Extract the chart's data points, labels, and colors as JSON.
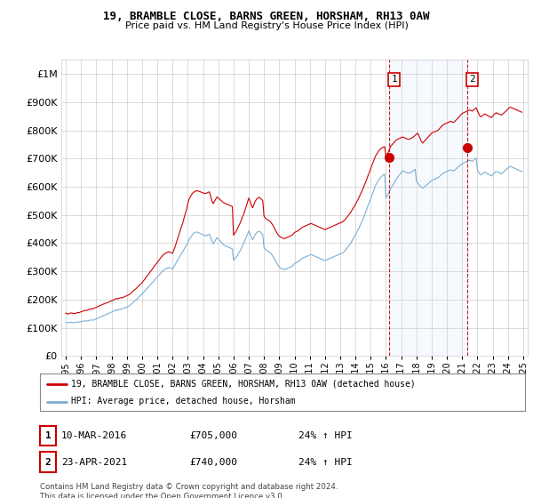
{
  "title": "19, BRAMBLE CLOSE, BARNS GREEN, HORSHAM, RH13 0AW",
  "subtitle": "Price paid vs. HM Land Registry's House Price Index (HPI)",
  "legend_line1": "19, BRAMBLE CLOSE, BARNS GREEN, HORSHAM, RH13 0AW (detached house)",
  "legend_line2": "HPI: Average price, detached house, Horsham",
  "annotation1_date": "10-MAR-2016",
  "annotation1_price": "£705,000",
  "annotation1_hpi": "24% ↑ HPI",
  "annotation2_date": "23-APR-2021",
  "annotation2_price": "£740,000",
  "annotation2_hpi": "24% ↑ HPI",
  "footer": "Contains HM Land Registry data © Crown copyright and database right 2024.\nThis data is licensed under the Open Government Licence v3.0.",
  "ylim": [
    0,
    1050000
  ],
  "ytick_vals": [
    0,
    100000,
    200000,
    300000,
    400000,
    500000,
    600000,
    700000,
    800000,
    900000,
    1000000
  ],
  "ytick_labels": [
    "£0",
    "£100K",
    "£200K",
    "£300K",
    "£400K",
    "£500K",
    "£600K",
    "£700K",
    "£800K",
    "£900K",
    "£1M"
  ],
  "red_color": "#cc0000",
  "blue_color": "#7aaed6",
  "shade_color": "#ddeeff",
  "vline_color": "#cc0000",
  "grid_color": "#cccccc",
  "bg_color": "#ffffff",
  "vline1_x": 2016.19,
  "vline2_x": 2021.31,
  "dot1_x": 2016.19,
  "dot1_y": 705000,
  "dot2_x": 2021.31,
  "dot2_y": 740000,
  "xmin": 1994.7,
  "xmax": 2025.3,
  "red_x": [
    1995.0,
    1995.08,
    1995.17,
    1995.25,
    1995.33,
    1995.42,
    1995.5,
    1995.58,
    1995.67,
    1995.75,
    1995.83,
    1995.92,
    1996.0,
    1996.08,
    1996.17,
    1996.25,
    1996.33,
    1996.42,
    1996.5,
    1996.58,
    1996.67,
    1996.75,
    1996.83,
    1996.92,
    1997.0,
    1997.08,
    1997.17,
    1997.25,
    1997.33,
    1997.42,
    1997.5,
    1997.58,
    1997.67,
    1997.75,
    1997.83,
    1997.92,
    1998.0,
    1998.08,
    1998.17,
    1998.25,
    1998.33,
    1998.42,
    1998.5,
    1998.58,
    1998.67,
    1998.75,
    1998.83,
    1998.92,
    1999.0,
    1999.08,
    1999.17,
    1999.25,
    1999.33,
    1999.42,
    1999.5,
    1999.58,
    1999.67,
    1999.75,
    1999.83,
    1999.92,
    2000.0,
    2000.08,
    2000.17,
    2000.25,
    2000.33,
    2000.42,
    2000.5,
    2000.58,
    2000.67,
    2000.75,
    2000.83,
    2000.92,
    2001.0,
    2001.08,
    2001.17,
    2001.25,
    2001.33,
    2001.42,
    2001.5,
    2001.58,
    2001.67,
    2001.75,
    2001.83,
    2001.92,
    2002.0,
    2002.08,
    2002.17,
    2002.25,
    2002.33,
    2002.42,
    2002.5,
    2002.58,
    2002.67,
    2002.75,
    2002.83,
    2002.92,
    2003.0,
    2003.08,
    2003.17,
    2003.25,
    2003.33,
    2003.42,
    2003.5,
    2003.58,
    2003.67,
    2003.75,
    2003.83,
    2003.92,
    2004.0,
    2004.08,
    2004.17,
    2004.25,
    2004.33,
    2004.42,
    2004.5,
    2004.58,
    2004.67,
    2004.75,
    2004.83,
    2004.92,
    2005.0,
    2005.08,
    2005.17,
    2005.25,
    2005.33,
    2005.42,
    2005.5,
    2005.58,
    2005.67,
    2005.75,
    2005.83,
    2005.92,
    2006.0,
    2006.08,
    2006.17,
    2006.25,
    2006.33,
    2006.42,
    2006.5,
    2006.58,
    2006.67,
    2006.75,
    2006.83,
    2006.92,
    2007.0,
    2007.08,
    2007.17,
    2007.25,
    2007.33,
    2007.42,
    2007.5,
    2007.58,
    2007.67,
    2007.75,
    2007.83,
    2007.92,
    2008.0,
    2008.08,
    2008.17,
    2008.25,
    2008.33,
    2008.42,
    2008.5,
    2008.58,
    2008.67,
    2008.75,
    2008.83,
    2008.92,
    2009.0,
    2009.08,
    2009.17,
    2009.25,
    2009.33,
    2009.42,
    2009.5,
    2009.58,
    2009.67,
    2009.75,
    2009.83,
    2009.92,
    2010.0,
    2010.08,
    2010.17,
    2010.25,
    2010.33,
    2010.42,
    2010.5,
    2010.58,
    2010.67,
    2010.75,
    2010.83,
    2010.92,
    2011.0,
    2011.08,
    2011.17,
    2011.25,
    2011.33,
    2011.42,
    2011.5,
    2011.58,
    2011.67,
    2011.75,
    2011.83,
    2011.92,
    2012.0,
    2012.08,
    2012.17,
    2012.25,
    2012.33,
    2012.42,
    2012.5,
    2012.58,
    2012.67,
    2012.75,
    2012.83,
    2012.92,
    2013.0,
    2013.08,
    2013.17,
    2013.25,
    2013.33,
    2013.42,
    2013.5,
    2013.58,
    2013.67,
    2013.75,
    2013.83,
    2013.92,
    2014.0,
    2014.08,
    2014.17,
    2014.25,
    2014.33,
    2014.42,
    2014.5,
    2014.58,
    2014.67,
    2014.75,
    2014.83,
    2014.92,
    2015.0,
    2015.08,
    2015.17,
    2015.25,
    2015.33,
    2015.42,
    2015.5,
    2015.58,
    2015.67,
    2015.75,
    2015.83,
    2015.92,
    2016.0,
    2016.08,
    2016.17,
    2016.25,
    2016.33,
    2016.42,
    2016.5,
    2016.58,
    2016.67,
    2016.75,
    2016.83,
    2016.92,
    2017.0,
    2017.08,
    2017.17,
    2017.25,
    2017.33,
    2017.42,
    2017.5,
    2017.58,
    2017.67,
    2017.75,
    2017.83,
    2017.92,
    2018.0,
    2018.08,
    2018.17,
    2018.25,
    2018.33,
    2018.42,
    2018.5,
    2018.58,
    2018.67,
    2018.75,
    2018.83,
    2018.92,
    2019.0,
    2019.08,
    2019.17,
    2019.25,
    2019.33,
    2019.42,
    2019.5,
    2019.58,
    2019.67,
    2019.75,
    2019.83,
    2019.92,
    2020.0,
    2020.08,
    2020.17,
    2020.25,
    2020.33,
    2020.42,
    2020.5,
    2020.58,
    2020.67,
    2020.75,
    2020.83,
    2020.92,
    2021.0,
    2021.08,
    2021.17,
    2021.25,
    2021.33,
    2021.42,
    2021.5,
    2021.58,
    2021.67,
    2021.75,
    2021.83,
    2021.92,
    2022.0,
    2022.08,
    2022.17,
    2022.25,
    2022.33,
    2022.42,
    2022.5,
    2022.58,
    2022.67,
    2022.75,
    2022.83,
    2022.92,
    2023.0,
    2023.08,
    2023.17,
    2023.25,
    2023.33,
    2023.42,
    2023.5,
    2023.58,
    2023.67,
    2023.75,
    2023.83,
    2023.92,
    2024.0,
    2024.08,
    2024.17,
    2024.25,
    2024.33,
    2024.42,
    2024.5,
    2024.58,
    2024.67,
    2024.75,
    2024.83,
    2024.92
  ],
  "red_y": [
    152000,
    150000,
    149000,
    151000,
    153000,
    152000,
    151000,
    150000,
    152000,
    154000,
    153000,
    155000,
    157000,
    158000,
    160000,
    162000,
    161000,
    163000,
    165000,
    166000,
    168000,
    167000,
    169000,
    171000,
    173000,
    175000,
    177000,
    179000,
    181000,
    183000,
    185000,
    187000,
    188000,
    190000,
    192000,
    194000,
    196000,
    198000,
    200000,
    202000,
    204000,
    203000,
    205000,
    207000,
    206000,
    208000,
    210000,
    212000,
    214000,
    216000,
    218000,
    222000,
    226000,
    230000,
    234000,
    238000,
    242000,
    248000,
    252000,
    256000,
    260000,
    266000,
    272000,
    278000,
    284000,
    290000,
    296000,
    302000,
    308000,
    314000,
    320000,
    326000,
    332000,
    338000,
    344000,
    350000,
    355000,
    360000,
    363000,
    366000,
    368000,
    370000,
    368000,
    366000,
    364000,
    375000,
    388000,
    402000,
    416000,
    430000,
    444000,
    458000,
    472000,
    488000,
    504000,
    520000,
    540000,
    555000,
    565000,
    572000,
    578000,
    582000,
    584000,
    586000,
    585000,
    583000,
    582000,
    580000,
    578000,
    577000,
    576000,
    578000,
    580000,
    582000,
    566000,
    550000,
    540000,
    548000,
    556000,
    564000,
    560000,
    556000,
    552000,
    548000,
    544000,
    542000,
    540000,
    538000,
    536000,
    534000,
    532000,
    530000,
    428000,
    435000,
    442000,
    450000,
    460000,
    470000,
    480000,
    492000,
    504000,
    516000,
    530000,
    545000,
    560000,
    550000,
    535000,
    525000,
    536000,
    548000,
    555000,
    560000,
    562000,
    560000,
    556000,
    550000,
    496000,
    490000,
    485000,
    482000,
    480000,
    476000,
    470000,
    464000,
    455000,
    446000,
    438000,
    430000,
    425000,
    422000,
    420000,
    418000,
    416000,
    418000,
    420000,
    422000,
    424000,
    426000,
    428000,
    432000,
    438000,
    440000,
    442000,
    445000,
    448000,
    452000,
    456000,
    458000,
    460000,
    462000,
    464000,
    466000,
    468000,
    470000,
    468000,
    466000,
    464000,
    462000,
    460000,
    458000,
    456000,
    454000,
    452000,
    450000,
    448000,
    450000,
    452000,
    454000,
    456000,
    458000,
    460000,
    462000,
    464000,
    466000,
    468000,
    470000,
    472000,
    474000,
    476000,
    480000,
    484000,
    490000,
    496000,
    502000,
    508000,
    515000,
    522000,
    530000,
    538000,
    546000,
    555000,
    564000,
    574000,
    584000,
    594000,
    605000,
    616000,
    628000,
    640000,
    652000,
    664000,
    676000,
    688000,
    700000,
    710000,
    718000,
    725000,
    730000,
    735000,
    738000,
    740000,
    742000,
    705000,
    715000,
    725000,
    735000,
    745000,
    750000,
    755000,
    760000,
    765000,
    768000,
    770000,
    772000,
    774000,
    776000,
    775000,
    773000,
    771000,
    769000,
    768000,
    770000,
    772000,
    775000,
    778000,
    782000,
    786000,
    790000,
    780000,
    770000,
    760000,
    755000,
    760000,
    765000,
    770000,
    775000,
    780000,
    785000,
    790000,
    792000,
    794000,
    796000,
    798000,
    800000,
    805000,
    810000,
    815000,
    820000,
    822000,
    824000,
    826000,
    828000,
    830000,
    832000,
    830000,
    828000,
    830000,
    835000,
    840000,
    845000,
    850000,
    855000,
    860000,
    862000,
    864000,
    866000,
    868000,
    870000,
    872000,
    870000,
    868000,
    872000,
    876000,
    880000,
    870000,
    860000,
    850000,
    848000,
    852000,
    856000,
    858000,
    855000,
    852000,
    850000,
    848000,
    845000,
    850000,
    855000,
    860000,
    862000,
    860000,
    858000,
    856000,
    854000,
    858000,
    862000,
    866000,
    870000,
    875000,
    880000,
    882000,
    880000,
    878000,
    876000,
    874000,
    872000,
    870000,
    868000,
    866000,
    864000
  ],
  "blue_y": [
    120000,
    119000,
    118000,
    119000,
    120000,
    119000,
    118000,
    119000,
    120000,
    121000,
    120000,
    121000,
    122000,
    123000,
    124000,
    125000,
    124000,
    125000,
    126000,
    127000,
    128000,
    127000,
    128000,
    130000,
    132000,
    134000,
    136000,
    138000,
    140000,
    142000,
    144000,
    146000,
    148000,
    150000,
    152000,
    154000,
    156000,
    158000,
    160000,
    162000,
    164000,
    163000,
    165000,
    167000,
    166000,
    168000,
    170000,
    172000,
    174000,
    176000,
    178000,
    182000,
    186000,
    190000,
    194000,
    198000,
    202000,
    207000,
    212000,
    216000,
    220000,
    225000,
    230000,
    235000,
    240000,
    245000,
    250000,
    255000,
    260000,
    265000,
    270000,
    275000,
    280000,
    285000,
    290000,
    295000,
    300000,
    304000,
    307000,
    310000,
    312000,
    314000,
    312000,
    310000,
    308000,
    316000,
    324000,
    332000,
    340000,
    348000,
    356000,
    364000,
    370000,
    378000,
    386000,
    394000,
    402000,
    412000,
    420000,
    426000,
    432000,
    436000,
    438000,
    440000,
    438000,
    436000,
    434000,
    432000,
    430000,
    428000,
    426000,
    428000,
    430000,
    432000,
    420000,
    408000,
    398000,
    405000,
    412000,
    420000,
    415000,
    410000,
    405000,
    400000,
    395000,
    392000,
    390000,
    388000,
    386000,
    384000,
    382000,
    380000,
    340000,
    345000,
    350000,
    356000,
    364000,
    372000,
    380000,
    390000,
    400000,
    410000,
    420000,
    432000,
    444000,
    434000,
    420000,
    412000,
    420000,
    430000,
    436000,
    440000,
    442000,
    440000,
    436000,
    430000,
    385000,
    380000,
    375000,
    372000,
    370000,
    366000,
    360000,
    354000,
    346000,
    338000,
    330000,
    322000,
    316000,
    312000,
    310000,
    308000,
    306000,
    308000,
    310000,
    312000,
    314000,
    316000,
    318000,
    322000,
    328000,
    330000,
    332000,
    335000,
    338000,
    342000,
    346000,
    348000,
    350000,
    352000,
    354000,
    356000,
    358000,
    360000,
    358000,
    356000,
    354000,
    352000,
    350000,
    348000,
    346000,
    344000,
    342000,
    340000,
    338000,
    340000,
    342000,
    344000,
    346000,
    348000,
    350000,
    352000,
    354000,
    356000,
    358000,
    360000,
    362000,
    364000,
    366000,
    370000,
    374000,
    380000,
    386000,
    392000,
    398000,
    406000,
    414000,
    422000,
    430000,
    438000,
    447000,
    456000,
    466000,
    476000,
    486000,
    498000,
    510000,
    522000,
    534000,
    546000,
    558000,
    570000,
    582000,
    594000,
    606000,
    614000,
    622000,
    628000,
    634000,
    638000,
    642000,
    645000,
    560000,
    568000,
    576000,
    585000,
    596000,
    603000,
    610000,
    618000,
    626000,
    632000,
    638000,
    644000,
    650000,
    656000,
    655000,
    653000,
    651000,
    649000,
    647000,
    650000,
    652000,
    655000,
    658000,
    662000,
    620000,
    614000,
    608000,
    603000,
    598000,
    595000,
    598000,
    602000,
    606000,
    610000,
    614000,
    618000,
    622000,
    624000,
    626000,
    628000,
    630000,
    632000,
    636000,
    640000,
    644000,
    648000,
    650000,
    652000,
    654000,
    656000,
    658000,
    660000,
    658000,
    656000,
    658000,
    662000,
    666000,
    670000,
    674000,
    678000,
    682000,
    684000,
    686000,
    688000,
    690000,
    692000,
    694000,
    692000,
    690000,
    694000,
    698000,
    702000,
    660000,
    652000,
    644000,
    642000,
    646000,
    650000,
    652000,
    649000,
    646000,
    644000,
    641000,
    638000,
    642000,
    647000,
    652000,
    654000,
    652000,
    650000,
    648000,
    646000,
    650000,
    654000,
    658000,
    662000,
    666000,
    670000,
    672000,
    670000,
    668000,
    666000,
    664000,
    662000,
    660000,
    658000,
    656000,
    654000
  ]
}
